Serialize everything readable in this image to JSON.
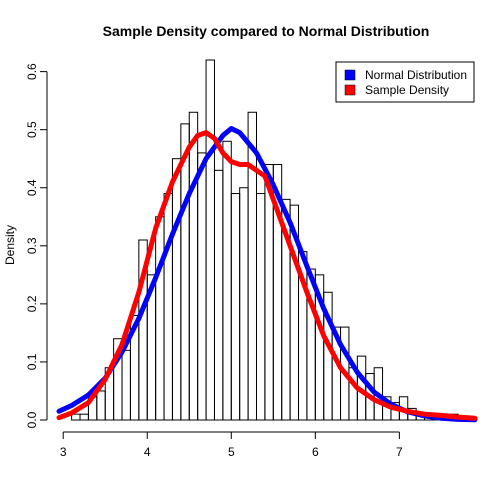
{
  "chart_data": {
    "type": "bar",
    "title": "Sample Density compared to Normal Distribution",
    "xlabel": "",
    "ylabel": "Density",
    "xlim": [
      2.95,
      7.9
    ],
    "ylim": [
      0,
      0.62
    ],
    "x_ticks": [
      3,
      4,
      5,
      6,
      7
    ],
    "y_ticks": [
      0.0,
      0.1,
      0.2,
      0.3,
      0.4,
      0.5,
      0.6
    ],
    "x_tick_labels": [
      "3",
      "4",
      "5",
      "6",
      "7"
    ],
    "y_tick_labels": [
      "0.0",
      "0.1",
      "0.2",
      "0.3",
      "0.4",
      "0.5",
      "0.6"
    ],
    "grid": false,
    "legend_position": "top-right",
    "histogram": {
      "bin_width": 0.1,
      "bin_start": 3.0,
      "densities": [
        0.0,
        0.01,
        0.01,
        0.04,
        0.05,
        0.09,
        0.14,
        0.12,
        0.18,
        0.31,
        0.25,
        0.35,
        0.39,
        0.45,
        0.51,
        0.53,
        0.46,
        0.62,
        0.43,
        0.48,
        0.39,
        0.4,
        0.53,
        0.39,
        0.44,
        0.44,
        0.38,
        0.37,
        0.29,
        0.26,
        0.25,
        0.22,
        0.16,
        0.16,
        0.09,
        0.11,
        0.08,
        0.09,
        0.04,
        0.03,
        0.04,
        0.02,
        0.01,
        0.01,
        0.01,
        0.01,
        0.01
      ]
    },
    "series": [
      {
        "name": "Normal Distribution",
        "color": "#0000FF",
        "x": [
          2.95,
          3.1,
          3.3,
          3.5,
          3.7,
          3.9,
          4.1,
          4.3,
          4.5,
          4.7,
          4.9,
          5.0,
          5.1,
          5.3,
          5.5,
          5.7,
          5.9,
          6.1,
          6.3,
          6.5,
          6.7,
          6.9,
          7.1,
          7.3,
          7.5,
          7.7,
          7.9
        ],
        "y": [
          0.015,
          0.025,
          0.043,
          0.072,
          0.117,
          0.175,
          0.245,
          0.32,
          0.39,
          0.45,
          0.49,
          0.502,
          0.495,
          0.46,
          0.405,
          0.34,
          0.265,
          0.192,
          0.13,
          0.082,
          0.048,
          0.027,
          0.014,
          0.007,
          0.003,
          0.001,
          0.0005
        ]
      },
      {
        "name": "Sample Density",
        "color": "#FF0000",
        "x": [
          2.95,
          3.1,
          3.3,
          3.5,
          3.7,
          3.9,
          4.1,
          4.3,
          4.5,
          4.6,
          4.7,
          4.8,
          4.9,
          5.0,
          5.1,
          5.2,
          5.4,
          5.5,
          5.7,
          5.9,
          6.1,
          6.3,
          6.5,
          6.7,
          6.9,
          7.1,
          7.3,
          7.5,
          7.7,
          7.9
        ],
        "y": [
          0.004,
          0.012,
          0.03,
          0.07,
          0.13,
          0.22,
          0.33,
          0.41,
          0.47,
          0.49,
          0.495,
          0.485,
          0.46,
          0.445,
          0.44,
          0.44,
          0.42,
          0.38,
          0.3,
          0.22,
          0.145,
          0.09,
          0.055,
          0.035,
          0.022,
          0.015,
          0.01,
          0.008,
          0.005,
          0.003
        ]
      }
    ]
  }
}
